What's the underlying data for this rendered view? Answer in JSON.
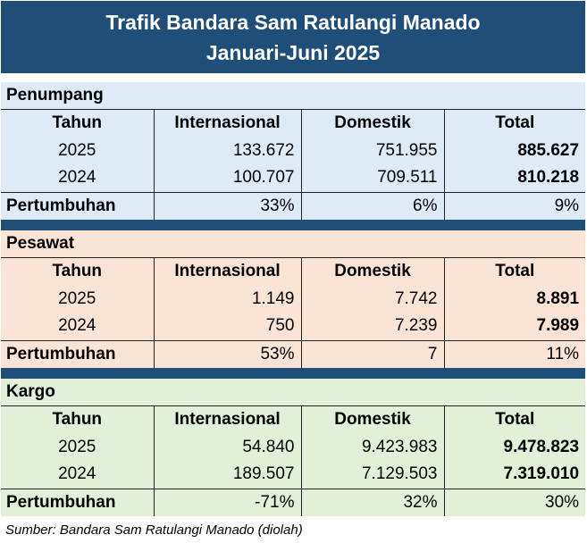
{
  "header": {
    "title_line1": "Trafik Bandara Sam Ratulangi Manado",
    "title_line2": "Januari-Juni 2025"
  },
  "columns": [
    "Tahun",
    "Internasional",
    "Domestik",
    "Total"
  ],
  "sections": [
    {
      "title": "Penumpang",
      "bg": "#deeaf6",
      "rows": [
        [
          "2025",
          "133.672",
          "751.955",
          "885.627"
        ],
        [
          "2024",
          "100.707",
          "709.511",
          "810.218"
        ]
      ],
      "growth": [
        "Pertumbuhan",
        "33%",
        "6%",
        "9%"
      ]
    },
    {
      "title": "Pesawat",
      "bg": "#fbe4d5",
      "rows": [
        [
          "2025",
          "1.149",
          "7.742",
          "8.891"
        ],
        [
          "2024",
          "750",
          "7.239",
          "7.989"
        ]
      ],
      "growth": [
        "Pertumbuhan",
        "53%",
        "7",
        "11%"
      ]
    },
    {
      "title": "Kargo",
      "bg": "#e2efd9",
      "rows": [
        [
          "2025",
          "54.840",
          "9.423.983",
          "9.478.823"
        ],
        [
          "2024",
          "189.507",
          "7.129.503",
          "7.319.010"
        ]
      ],
      "growth": [
        "Pertumbuhan",
        "-71%",
        "32%",
        "30%"
      ]
    }
  ],
  "footer": {
    "source": "Sumber: Bandara Sam Ratulangi Manado (diolah)"
  },
  "colors": {
    "header_bg": "#1f4e79",
    "penumpang_bg": "#deeaf6",
    "pesawat_bg": "#fbe4d5",
    "kargo_bg": "#e2efd9"
  }
}
